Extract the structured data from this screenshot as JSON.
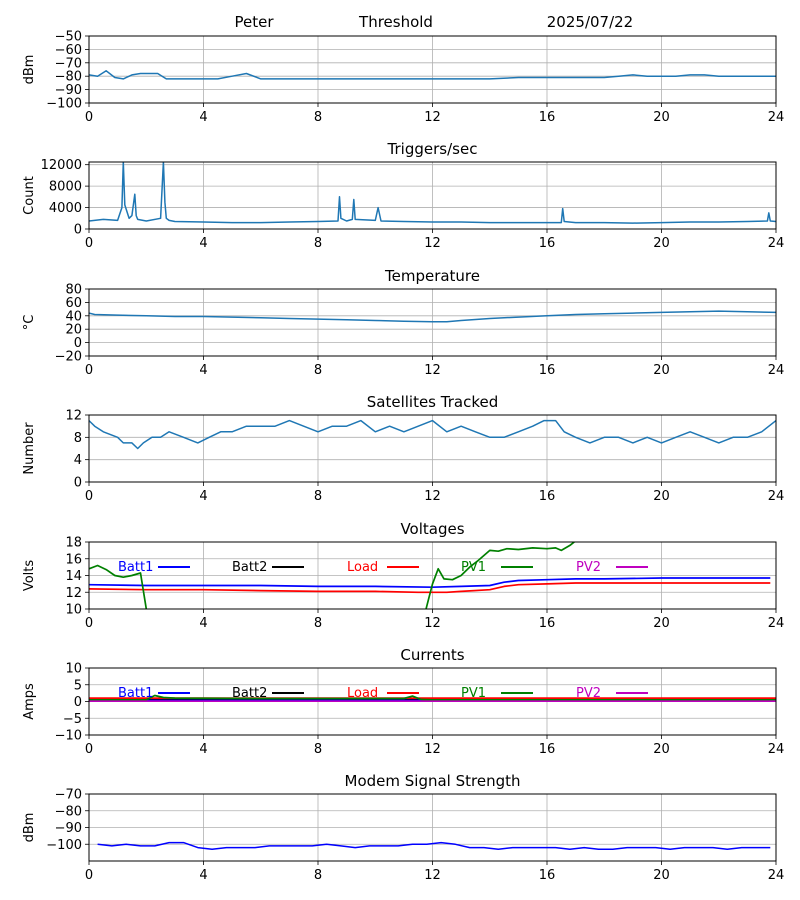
{
  "header": {
    "name": "Peter",
    "label": "Threshold",
    "date": "2025/07/22"
  },
  "x_ticks": [
    0,
    4,
    8,
    12,
    16,
    20,
    24
  ],
  "colors": {
    "series": "#1f77b4",
    "Batt1": "#0000ff",
    "Batt2": "#000000",
    "Load": "#ff0000",
    "PV1": "#008000",
    "PV2": "#bf00bf",
    "modem": "#0000ff"
  },
  "chart_data": [
    {
      "type": "line",
      "title": "",
      "ylabel": "dBm",
      "xlim": [
        0,
        24
      ],
      "ylim": [
        -100,
        -50
      ],
      "yticks": [
        -100,
        -90,
        -80,
        -70,
        -60,
        -50
      ],
      "grid": true,
      "series": [
        {
          "x": [
            0,
            0.3,
            0.6,
            0.9,
            1.2,
            1.5,
            1.8,
            2.1,
            2.4,
            2.7,
            3,
            3.5,
            4,
            4.5,
            5,
            5.5,
            6,
            7,
            8,
            9,
            10,
            11,
            12,
            13,
            14,
            15,
            16,
            17,
            18,
            18.5,
            19,
            19.5,
            20,
            20.5,
            21,
            21.5,
            22,
            22.5,
            23,
            23.5,
            24
          ],
          "y": [
            -79,
            -80,
            -76,
            -81,
            -82,
            -79,
            -78,
            -78,
            -78,
            -82,
            -82,
            -82,
            -82,
            -82,
            -80,
            -78,
            -82,
            -82,
            -82,
            -82,
            -82,
            -82,
            -82,
            -82,
            -82,
            -81,
            -81,
            -81,
            -81,
            -80,
            -79,
            -80,
            -80,
            -80,
            -79,
            -79,
            -80,
            -80,
            -80,
            -80,
            -80
          ]
        }
      ]
    },
    {
      "type": "line",
      "title": "Triggers/sec",
      "ylabel": "Count",
      "xlim": [
        0,
        24
      ],
      "ylim": [
        0,
        12500
      ],
      "yticks": [
        0,
        4000,
        8000,
        12000
      ],
      "grid": true,
      "series": [
        {
          "x": [
            0,
            0.5,
            1,
            1.15,
            1.2,
            1.25,
            1.4,
            1.5,
            1.6,
            1.65,
            1.7,
            2,
            2.5,
            2.6,
            2.65,
            2.7,
            2.8,
            3,
            4,
            5,
            6,
            7,
            8,
            8.7,
            8.75,
            8.8,
            9,
            9.2,
            9.25,
            9.3,
            10,
            10.1,
            10.2,
            11,
            12,
            13,
            14,
            15,
            16,
            16.5,
            16.55,
            16.6,
            17,
            18,
            19,
            20,
            21,
            22,
            23,
            23.7,
            23.75,
            23.8,
            24
          ],
          "y": [
            1500,
            1800,
            1600,
            4000,
            12500,
            4500,
            2000,
            2500,
            6500,
            2500,
            1800,
            1500,
            2000,
            12500,
            5000,
            2000,
            1600,
            1400,
            1300,
            1200,
            1200,
            1300,
            1400,
            1500,
            6000,
            2000,
            1500,
            1800,
            5500,
            1800,
            1600,
            4000,
            1500,
            1400,
            1300,
            1300,
            1200,
            1200,
            1200,
            1200,
            3800,
            1400,
            1200,
            1200,
            1100,
            1200,
            1300,
            1300,
            1400,
            1500,
            3000,
            1500,
            1400
          ]
        }
      ]
    },
    {
      "type": "line",
      "title": "Temperature",
      "ylabel": "°C",
      "xlim": [
        0,
        24
      ],
      "ylim": [
        -20,
        80
      ],
      "yticks": [
        -20,
        0,
        20,
        40,
        60,
        80
      ],
      "grid": true,
      "series": [
        {
          "x": [
            0,
            0.2,
            1,
            2,
            3,
            4,
            5,
            6,
            7,
            8,
            9,
            10,
            11,
            12,
            12.5,
            13,
            14,
            15,
            16,
            17,
            18,
            19,
            20,
            21,
            22,
            23,
            24
          ],
          "y": [
            44,
            42,
            41,
            40,
            39,
            39,
            38,
            37,
            36,
            35,
            34,
            33,
            32,
            31,
            31,
            33,
            36,
            38,
            40,
            42,
            43,
            44,
            45,
            46,
            47,
            46,
            45
          ]
        }
      ]
    },
    {
      "type": "line",
      "title": "Satellites Tracked",
      "ylabel": "Number",
      "xlim": [
        0,
        24
      ],
      "ylim": [
        0,
        12
      ],
      "yticks": [
        0,
        4,
        8,
        12
      ],
      "grid": true,
      "series": [
        {
          "x": [
            0,
            0.2,
            0.5,
            1,
            1.2,
            1.5,
            1.7,
            1.9,
            2.2,
            2.5,
            2.8,
            3.3,
            3.8,
            4.2,
            4.6,
            5,
            5.5,
            6,
            6.5,
            7,
            7.5,
            8,
            8.5,
            9,
            9.5,
            10,
            10.5,
            11,
            11.5,
            12,
            12.5,
            13,
            13.5,
            14,
            14.5,
            15,
            15.5,
            15.9,
            16.3,
            16.6,
            17,
            17.5,
            18,
            18.5,
            19,
            19.5,
            20,
            20.5,
            21,
            21.5,
            22,
            22.5,
            23,
            23.5,
            24
          ],
          "y": [
            11,
            10,
            9,
            8,
            7,
            7,
            6,
            7,
            8,
            8,
            9,
            8,
            7,
            8,
            9,
            9,
            10,
            10,
            10,
            11,
            10,
            9,
            10,
            10,
            11,
            9,
            10,
            9,
            10,
            11,
            9,
            10,
            9,
            8,
            8,
            9,
            10,
            11,
            11,
            9,
            8,
            7,
            8,
            8,
            7,
            8,
            7,
            8,
            9,
            8,
            7,
            8,
            8,
            9,
            11
          ]
        }
      ]
    },
    {
      "type": "line",
      "title": "Voltages",
      "ylabel": "Volts",
      "xlim": [
        0,
        24
      ],
      "ylim": [
        10,
        18
      ],
      "yticks": [
        10,
        12,
        14,
        16,
        18
      ],
      "grid": true,
      "legend": "top",
      "series": [
        {
          "name": "Batt1",
          "x": [
            0,
            2,
            4,
            6,
            8,
            10,
            12,
            13,
            14,
            14.5,
            15,
            16,
            17,
            18,
            20,
            22,
            23.8
          ],
          "y": [
            12.9,
            12.8,
            12.8,
            12.8,
            12.7,
            12.7,
            12.6,
            12.7,
            12.8,
            13.2,
            13.4,
            13.5,
            13.6,
            13.6,
            13.7,
            13.7,
            13.7
          ]
        },
        {
          "name": "Batt2",
          "x": [],
          "y": []
        },
        {
          "name": "Load",
          "x": [
            0,
            2,
            4,
            6,
            8,
            10,
            11.5,
            12.5,
            13,
            14,
            14.5,
            15,
            16,
            17,
            18,
            20,
            22,
            23.8
          ],
          "y": [
            12.4,
            12.3,
            12.3,
            12.2,
            12.1,
            12.1,
            12.0,
            12.0,
            12.1,
            12.3,
            12.7,
            12.9,
            13.0,
            13.1,
            13.1,
            13.1,
            13.1,
            13.1
          ]
        },
        {
          "name": "PV1",
          "x": [
            0,
            0.3,
            0.6,
            0.9,
            1.2,
            1.5,
            1.8,
            2.0,
            2.05
          ],
          "y": [
            14.8,
            15.2,
            14.7,
            14.0,
            13.8,
            14.0,
            14.3,
            10.0,
            9.0
          ]
        },
        {
          "name": "PV1",
          "x": [
            11.7,
            11.85,
            12.0,
            12.2,
            12.4,
            12.7,
            13.0,
            13.3,
            13.6,
            14.0,
            14.3,
            14.6,
            15.0,
            15.5,
            16.0,
            16.3,
            16.5,
            16.8,
            17.1
          ],
          "y": [
            9.0,
            11.0,
            13.0,
            14.8,
            13.6,
            13.5,
            14.0,
            15.0,
            15.8,
            17.0,
            16.9,
            17.2,
            17.1,
            17.3,
            17.2,
            17.3,
            17.0,
            17.6,
            18.4
          ]
        },
        {
          "name": "PV2",
          "x": [],
          "y": []
        }
      ]
    },
    {
      "type": "line",
      "title": "Currents",
      "ylabel": "Amps",
      "xlim": [
        0,
        24
      ],
      "ylim": [
        -10,
        10
      ],
      "yticks": [
        -10,
        -5,
        0,
        5,
        10
      ],
      "grid": true,
      "legend": "top",
      "series": [
        {
          "name": "Batt1",
          "x": [
            0,
            24
          ],
          "y": [
            0.4,
            0.4
          ]
        },
        {
          "name": "Batt2",
          "x": [
            0,
            24
          ],
          "y": [
            0.8,
            0.8
          ]
        },
        {
          "name": "Load",
          "x": [
            0,
            24
          ],
          "y": [
            1.0,
            1.0
          ]
        },
        {
          "name": "PV1",
          "x": [
            0,
            2.0,
            2.3,
            2.6,
            3,
            6,
            9,
            11,
            11.3,
            11.6,
            12,
            24
          ],
          "y": [
            0.5,
            0.5,
            1.8,
            1.2,
            1.0,
            0.9,
            0.9,
            0.9,
            1.6,
            0.6,
            0.5,
            0.5
          ]
        },
        {
          "name": "PV2",
          "x": [
            0,
            24
          ],
          "y": [
            0.1,
            0.1
          ]
        }
      ]
    },
    {
      "type": "line",
      "title": "Modem Signal Strength",
      "ylabel": "dBm",
      "xlim": [
        0,
        24
      ],
      "ylim": [
        -110,
        -70
      ],
      "yticks": [
        -100,
        -90,
        -80,
        -70
      ],
      "grid": true,
      "series": [
        {
          "x": [
            0.3,
            0.8,
            1.3,
            1.8,
            2.3,
            2.8,
            3.3,
            3.8,
            4.3,
            4.8,
            5.3,
            5.8,
            6.3,
            6.8,
            7.3,
            7.8,
            8.3,
            8.8,
            9.3,
            9.8,
            10.3,
            10.8,
            11.3,
            11.8,
            12.3,
            12.8,
            13.3,
            13.8,
            14.3,
            14.8,
            15.3,
            15.8,
            16.3,
            16.8,
            17.3,
            17.8,
            18.3,
            18.8,
            19.3,
            19.8,
            20.3,
            20.8,
            21.3,
            21.8,
            22.3,
            22.8,
            23.3,
            23.8
          ],
          "y": [
            -100,
            -101,
            -100,
            -101,
            -101,
            -99,
            -99,
            -102,
            -103,
            -102,
            -102,
            -102,
            -101,
            -101,
            -101,
            -101,
            -100,
            -101,
            -102,
            -101,
            -101,
            -101,
            -100,
            -100,
            -99,
            -100,
            -102,
            -102,
            -103,
            -102,
            -102,
            -102,
            -102,
            -103,
            -102,
            -103,
            -103,
            -102,
            -102,
            -102,
            -103,
            -102,
            -102,
            -102,
            -103,
            -102,
            -102,
            -102
          ]
        }
      ]
    }
  ]
}
